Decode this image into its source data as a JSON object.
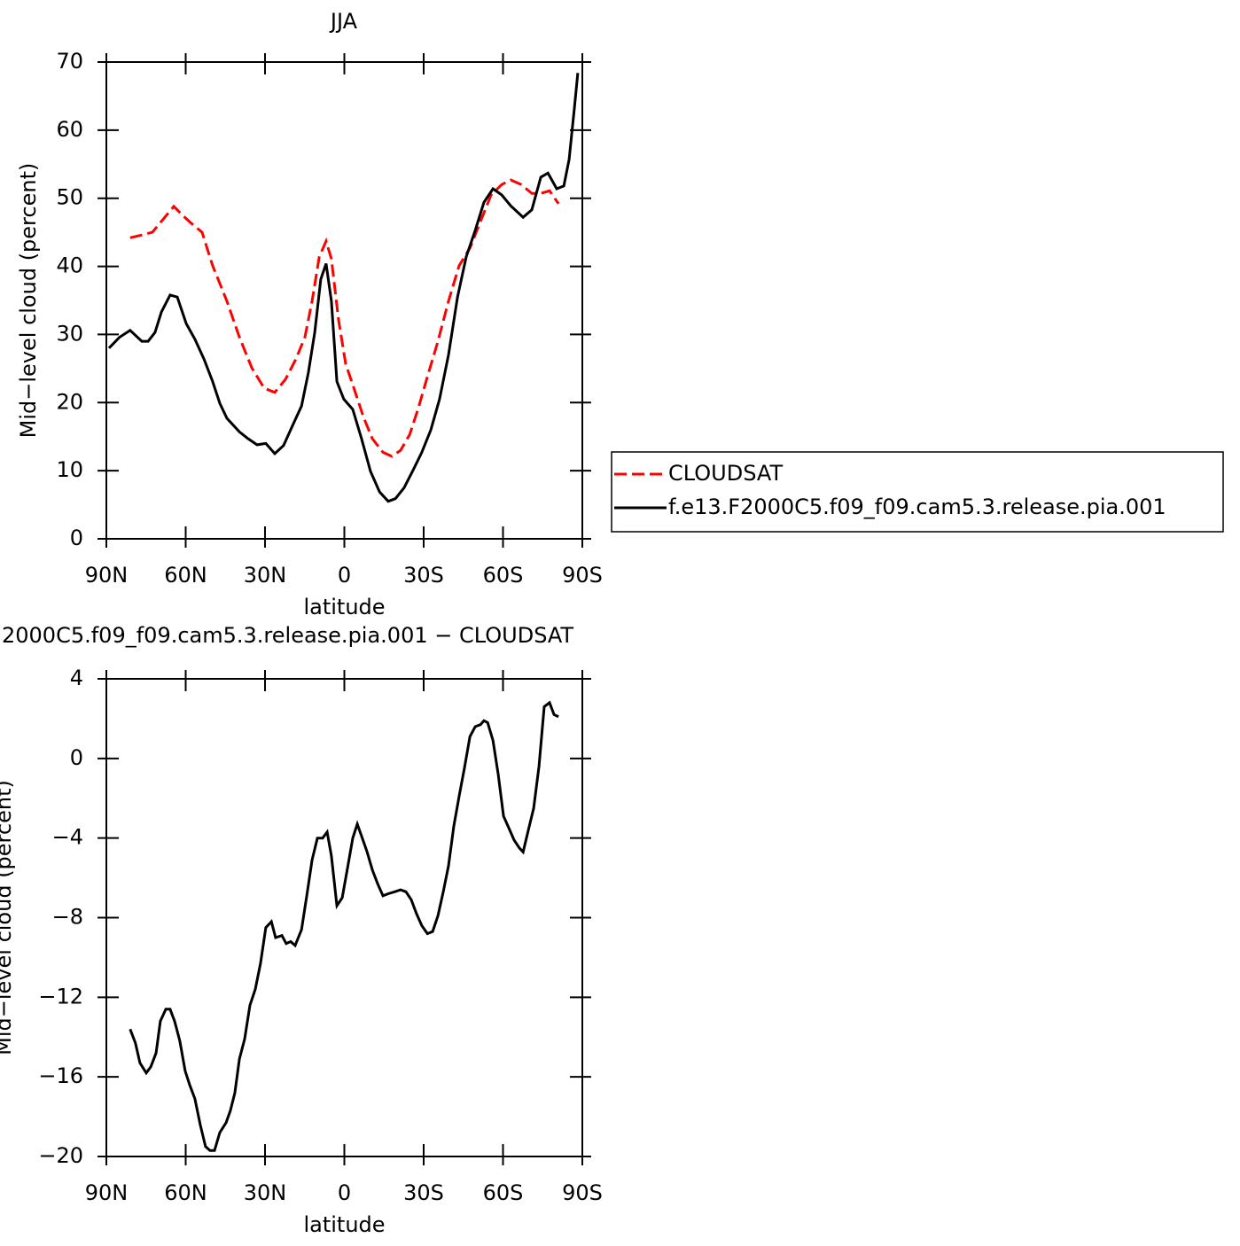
{
  "chart_data": [
    {
      "type": "line",
      "title": "JJA",
      "xlabel": "latitude",
      "ylabel": "Mid−level cloud (percent)",
      "xlim": [
        90,
        -90
      ],
      "xticks": [
        {
          "value": 90,
          "label": "90N"
        },
        {
          "value": 60,
          "label": "60N"
        },
        {
          "value": 30,
          "label": "30N"
        },
        0,
        {
          "value": -30,
          "label": "30S"
        },
        {
          "value": -60,
          "label": "60S"
        },
        {
          "value": -90,
          "label": "90S"
        }
      ],
      "ylim": [
        0,
        70
      ],
      "yticks": [
        0,
        10,
        20,
        30,
        40,
        50,
        60,
        70
      ],
      "legend": "right",
      "series": [
        {
          "name": "CLOUDSAT",
          "color": "#ff0000",
          "dash": "dashed",
          "x": [
            81,
            76.6,
            72.6,
            69.2,
            64.5,
            61.2,
            57.8,
            53.8,
            49.8,
            44.4,
            39.7,
            35.0,
            30.3,
            26.3,
            22.3,
            18.3,
            14.9,
            12.2,
            9.5,
            6.9,
            4.9,
            2.2,
            -0.5,
            -3.9,
            -7.2,
            -10.6,
            -14.6,
            -18.0,
            -21.3,
            -24.7,
            -28.0,
            -31.4,
            -35.4,
            -39.4,
            -43.4,
            -47.5,
            -51.5,
            -55.5,
            -59.5,
            -62.9,
            -66.9,
            -70.9,
            -74.3,
            -77.6,
            -81.0
          ],
          "values": [
            44.2,
            44.6,
            45.0,
            46.6,
            48.8,
            47.5,
            46.3,
            45.0,
            40.1,
            34.9,
            29.6,
            25.1,
            22.1,
            21.5,
            23.4,
            26.4,
            29.6,
            34.9,
            41.4,
            43.7,
            41.1,
            32.2,
            25.7,
            21.8,
            17.9,
            14.7,
            12.7,
            12.1,
            13.0,
            15.3,
            19.2,
            23.8,
            29.0,
            34.9,
            40.1,
            42.7,
            46.6,
            50.5,
            52.0,
            52.7,
            52.0,
            50.7,
            50.7,
            51.1,
            49.2
          ]
        },
        {
          "name": "f.e13.F2000C5.f09_f09.cam5.3.release.pia.001",
          "color": "#000000",
          "dash": "solid",
          "x": [
            89,
            85,
            81,
            76.6,
            74.2,
            71.6,
            69.2,
            65.9,
            63.2,
            59.8,
            56.5,
            53.1,
            49.8,
            47.1,
            44.4,
            39.7,
            36.4,
            33.0,
            29.7,
            26.3,
            23.0,
            19.6,
            16.2,
            13.6,
            11.2,
            8.9,
            6.9,
            4.9,
            2.8,
            0.2,
            -3.2,
            -6.5,
            -9.9,
            -13.3,
            -16.6,
            -19.3,
            -22.6,
            -26.0,
            -29.3,
            -32.7,
            -36.0,
            -39.4,
            -42.8,
            -46.1,
            -49.5,
            -52.8,
            -56.2,
            -59.5,
            -62.9,
            -67.6,
            -70.9,
            -74.3,
            -77.0,
            -80.3,
            -83.0,
            -85.0,
            -87.0,
            -88.3
          ],
          "values": [
            28.0,
            29.6,
            30.6,
            29.0,
            29.0,
            30.3,
            33.3,
            35.8,
            35.5,
            31.6,
            29.3,
            26.4,
            23.1,
            19.9,
            17.7,
            15.7,
            14.7,
            13.8,
            14.0,
            12.5,
            13.7,
            16.6,
            19.5,
            24.4,
            30.3,
            38.1,
            40.4,
            34.9,
            23.1,
            20.5,
            19.0,
            14.7,
            9.9,
            6.9,
            5.5,
            5.9,
            7.5,
            10.1,
            12.7,
            16.0,
            20.5,
            27.0,
            35.5,
            41.4,
            45.3,
            49.4,
            51.4,
            50.5,
            48.9,
            47.2,
            48.3,
            53.1,
            53.7,
            51.4,
            51.8,
            55.7,
            63.2,
            68.4
          ]
        }
      ]
    },
    {
      "type": "line",
      "title": "2000C5.f09_f09.cam5.3.release.pia.001  −  CLOUDSAT",
      "xlabel": "latitude",
      "ylabel": "Mid−level cloud (percent)",
      "xlim": [
        90,
        -90
      ],
      "xticks": [
        {
          "value": 90,
          "label": "90N"
        },
        {
          "value": 60,
          "label": "60N"
        },
        {
          "value": 30,
          "label": "30N"
        },
        0,
        {
          "value": -30,
          "label": "30S"
        },
        {
          "value": -60,
          "label": "60S"
        },
        {
          "value": -90,
          "label": "90S"
        }
      ],
      "ylim": [
        -20,
        4
      ],
      "yticks": [
        {
          "value": -20,
          "label": "−20"
        },
        {
          "value": -16,
          "label": "−16"
        },
        {
          "value": -12,
          "label": "−12"
        },
        {
          "value": -8,
          "label": "−8"
        },
        {
          "value": -4,
          "label": "−4"
        },
        0,
        4
      ],
      "color": "#000000",
      "x": [
        81,
        79,
        77.3,
        74.9,
        73.2,
        71.2,
        69.6,
        67.5,
        65.9,
        64.2,
        62.2,
        60.2,
        58.5,
        56.5,
        54.5,
        52.5,
        50.8,
        49.1,
        47.1,
        44.7,
        43.1,
        41.4,
        39.7,
        37.7,
        35.7,
        33.7,
        31.7,
        29.7,
        27.6,
        26.0,
        23.6,
        22.0,
        20.3,
        18.6,
        16.2,
        14.2,
        12.2,
        10.2,
        8.2,
        6.5,
        4.9,
        2.8,
        0.8,
        -1.2,
        -3.2,
        -4.9,
        -6.5,
        -8.6,
        -10.6,
        -12.6,
        -14.6,
        -16.6,
        -19.0,
        -21.3,
        -23.3,
        -25.3,
        -27.3,
        -29.3,
        -31.4,
        -33.4,
        -35.4,
        -37.4,
        -39.4,
        -41.4,
        -43.4,
        -45.4,
        -47.5,
        -49.5,
        -51.5,
        -52.8,
        -54.2,
        -56.2,
        -58.2,
        -60.2,
        -62.2,
        -64.2,
        -66.2,
        -67.6,
        -69.6,
        -71.6,
        -73.6,
        -75.6,
        -77.6,
        -79.3,
        -81.0
      ],
      "values": [
        -13.6,
        -14.3,
        -15.3,
        -15.8,
        -15.5,
        -14.8,
        -13.2,
        -12.6,
        -12.6,
        -13.2,
        -14.2,
        -15.7,
        -16.4,
        -17.1,
        -18.4,
        -19.5,
        -19.7,
        -19.7,
        -18.8,
        -18.3,
        -17.7,
        -16.8,
        -15.1,
        -14.1,
        -12.4,
        -11.6,
        -10.3,
        -8.5,
        -8.2,
        -9.0,
        -8.9,
        -9.3,
        -9.2,
        -9.4,
        -8.6,
        -6.9,
        -5.1,
        -4.0,
        -4.0,
        -3.7,
        -4.9,
        -7.4,
        -7.0,
        -5.5,
        -4.0,
        -3.3,
        -3.9,
        -4.7,
        -5.6,
        -6.3,
        -6.9,
        -6.8,
        -6.7,
        -6.6,
        -6.7,
        -7.1,
        -7.8,
        -8.4,
        -8.8,
        -8.7,
        -7.9,
        -6.7,
        -5.4,
        -3.4,
        -1.9,
        -0.5,
        1.1,
        1.6,
        1.7,
        1.9,
        1.8,
        0.9,
        -0.8,
        -2.9,
        -3.5,
        -4.1,
        -4.5,
        -4.7,
        -3.6,
        -2.5,
        -0.4,
        2.6,
        2.8,
        2.2,
        2.1
      ]
    }
  ]
}
